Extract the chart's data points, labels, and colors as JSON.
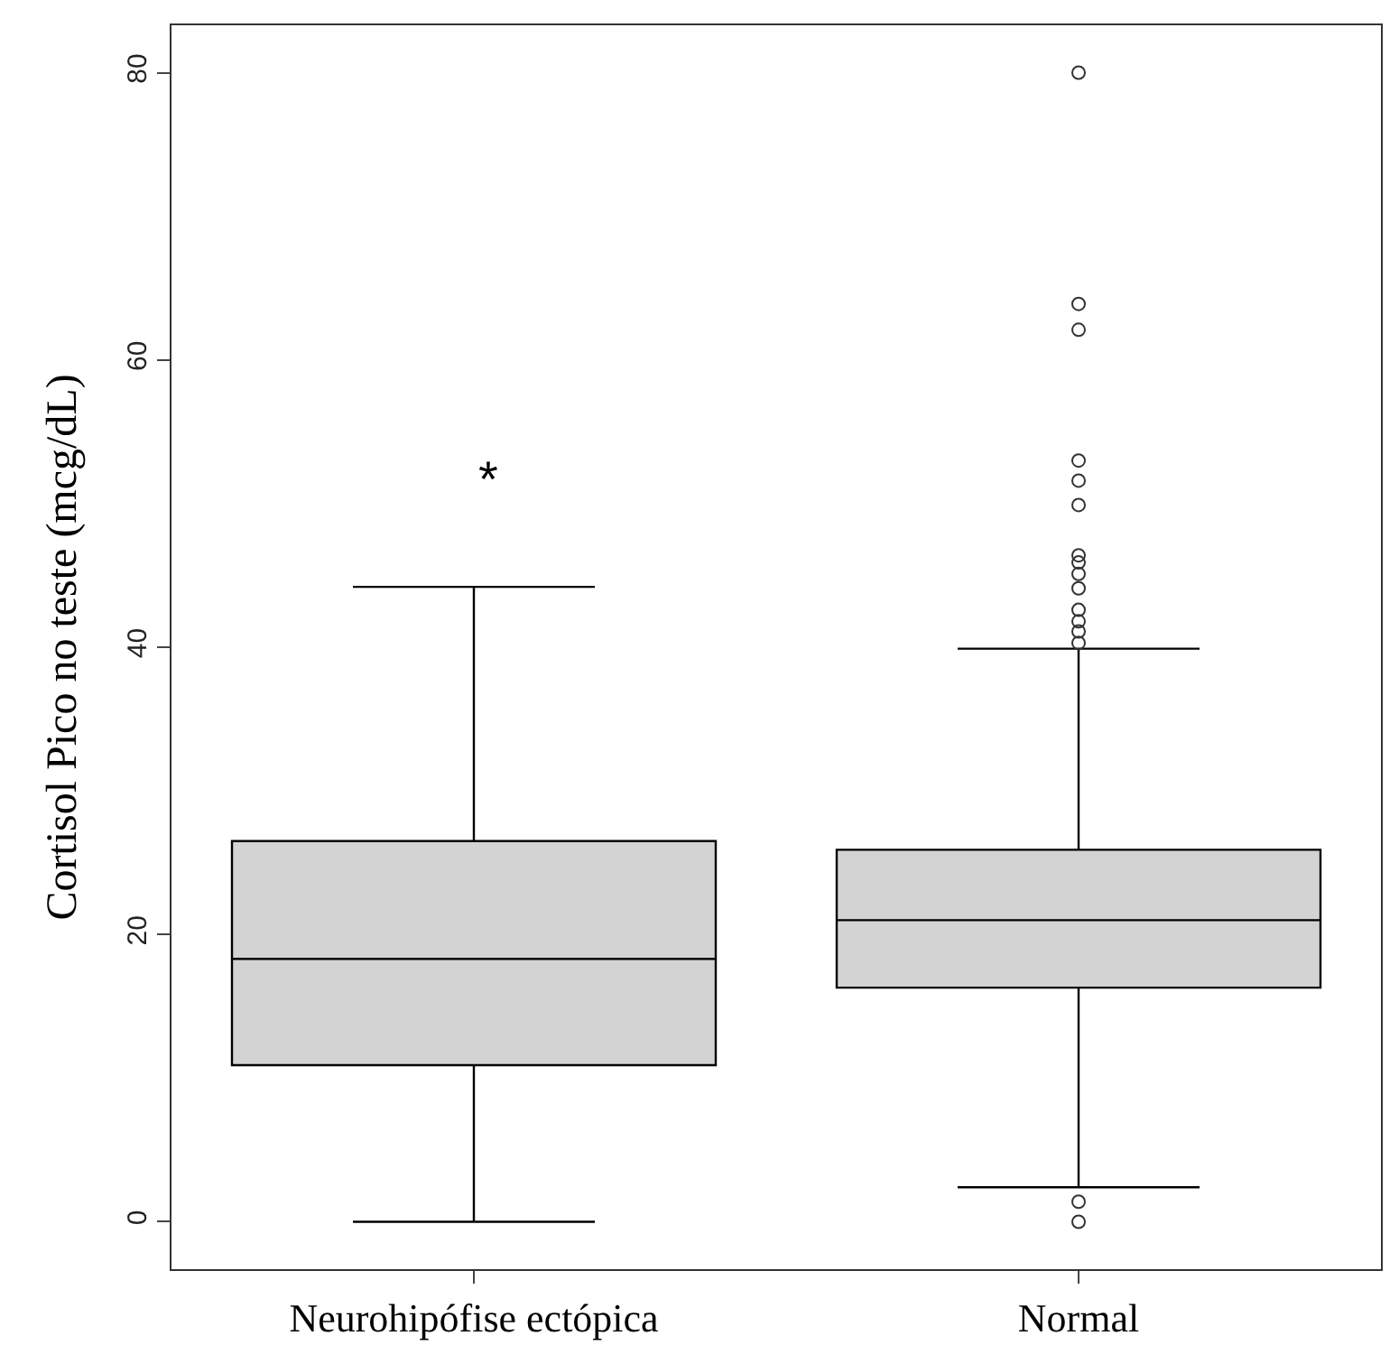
{
  "chart_data": {
    "type": "box",
    "ylabel": "Cortisol Pico no teste (mcg/dL)",
    "categories": [
      "Neurohipófise ectópica",
      "Normal"
    ],
    "boxes": [
      {
        "low": 0,
        "q1": 10.9,
        "median": 18.3,
        "q3": 26.5,
        "high": 44.2
      },
      {
        "low": 2.4,
        "q1": 16.3,
        "median": 21.0,
        "q3": 25.9,
        "high": 39.9,
        "outliers": [
          80,
          63.9,
          62.1,
          53.0,
          51.6,
          49.9,
          46.4,
          45.9,
          45.1,
          44.1,
          42.6,
          41.8,
          41.1,
          40.3,
          1.4,
          0
        ]
      }
    ],
    "color": "#d3d3d3",
    "ylim": [
      -3.3,
      83.3
    ],
    "yticks": [
      0,
      20,
      40,
      60,
      80
    ],
    "grid": false,
    "marker": "circle",
    "annotations": [
      "*"
    ]
  }
}
